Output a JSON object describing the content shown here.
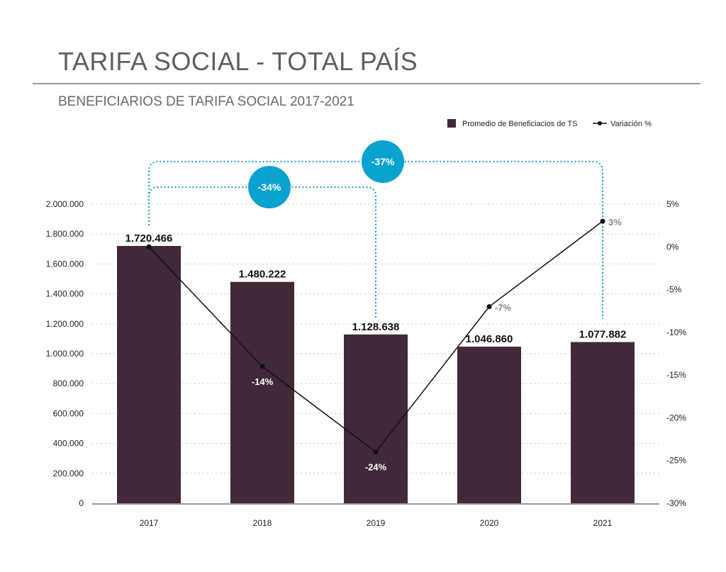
{
  "header": {
    "title": "TARIFA SOCIAL - TOTAL PAÍS",
    "subtitle": "BENEFICIARIOS DE TARIFA SOCIAL 2017-2021"
  },
  "chart_data": {
    "type": "bar",
    "categories": [
      "2017",
      "2018",
      "2019",
      "2020",
      "2021"
    ],
    "series": [
      {
        "name": "Promedio de Beneficiacios de TS",
        "type": "bar",
        "axis": "left",
        "values": [
          1720466,
          1480222,
          1128638,
          1046860,
          1077882
        ],
        "labels": [
          "1.720.466",
          "1.480.222",
          "1.128.638",
          "1.046.860",
          "1.077.882"
        ],
        "color": "#42293a"
      },
      {
        "name": "Variación %",
        "type": "line",
        "axis": "right",
        "values": [
          0,
          -14,
          -24,
          -7,
          3
        ],
        "labels": [
          "",
          "-14%",
          "-24%",
          "-7%",
          "3%"
        ],
        "label_colors": [
          "#ffffff",
          "#ffffff",
          "#ffffff",
          "#8a8a8a",
          "#8a8a8a"
        ],
        "color": "#111111"
      }
    ],
    "ylim_left": [
      0,
      2000000
    ],
    "yticks_left": [
      "0",
      "200.000",
      "400.000",
      "600.000",
      "800.000",
      "1.000.000",
      "1.200.000",
      "1.400.000",
      "1.600.000",
      "1.800.000",
      "2.000.000"
    ],
    "ylim_right": [
      -30,
      5
    ],
    "yticks_right": [
      "5%",
      "0%",
      "-5%",
      "-10%",
      "-15%",
      "-20%",
      "-25%",
      "-30%"
    ],
    "yticks_right_values": [
      5,
      0,
      -5,
      -10,
      -15,
      -20,
      -25,
      -30
    ],
    "grid": true,
    "legend_position": "top-right",
    "annotations": [
      {
        "label": "-37%",
        "from": "2017",
        "to": "2021",
        "color": "#0aa2cf"
      },
      {
        "label": "-34%",
        "from": "2017",
        "to": "2019",
        "color": "#0aa2cf"
      }
    ]
  }
}
